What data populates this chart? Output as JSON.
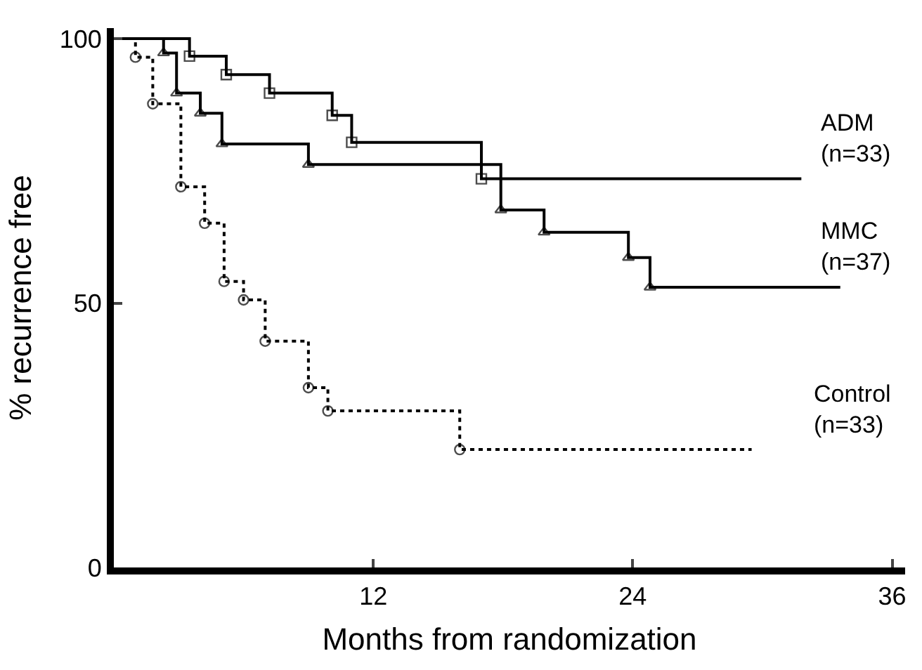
{
  "chart_data": {
    "type": "step",
    "xlabel": "Months from randomization",
    "ylabel": "% recurrence free",
    "xlim": [
      0,
      36.6
    ],
    "ylim": [
      0,
      102
    ],
    "xticks": [
      12,
      24,
      36
    ],
    "yticks": [
      0,
      50,
      100
    ],
    "legend": false,
    "series": [
      {
        "name": "ADM\n(n=33)",
        "color": "#000000",
        "marker": "square",
        "line_style": "solid",
        "x": [
          0,
          3.5,
          5.2,
          7.2,
          10.1,
          11.0,
          17.0,
          31.8
        ],
        "values": [
          100,
          96.7,
          93.2,
          89.7,
          85.5,
          80.4,
          73.5,
          73.5
        ]
      },
      {
        "name": "MMC\n(n=37)",
        "color": "#000000",
        "marker": "triangle",
        "line_style": "solid",
        "x": [
          0,
          2.3,
          2.9,
          4.0,
          5.0,
          9.0,
          17.9,
          19.9,
          23.8,
          24.8,
          33.6
        ],
        "values": [
          100,
          97.3,
          89.7,
          85.9,
          80.1,
          76.2,
          67.6,
          63.4,
          58.6,
          53.0,
          53.0
        ]
      },
      {
        "name": "Control\n(n=33)",
        "color": "#000000",
        "marker": "circle",
        "line_style": "dotted",
        "x": [
          0,
          1.0,
          1.8,
          3.1,
          4.2,
          5.1,
          6.0,
          7.0,
          9.0,
          9.9,
          16.0,
          29.5
        ],
        "values": [
          100,
          96.5,
          87.7,
          72.0,
          65.1,
          54.1,
          50.6,
          42.8,
          34.0,
          29.6,
          22.3,
          22.3
        ]
      }
    ]
  }
}
